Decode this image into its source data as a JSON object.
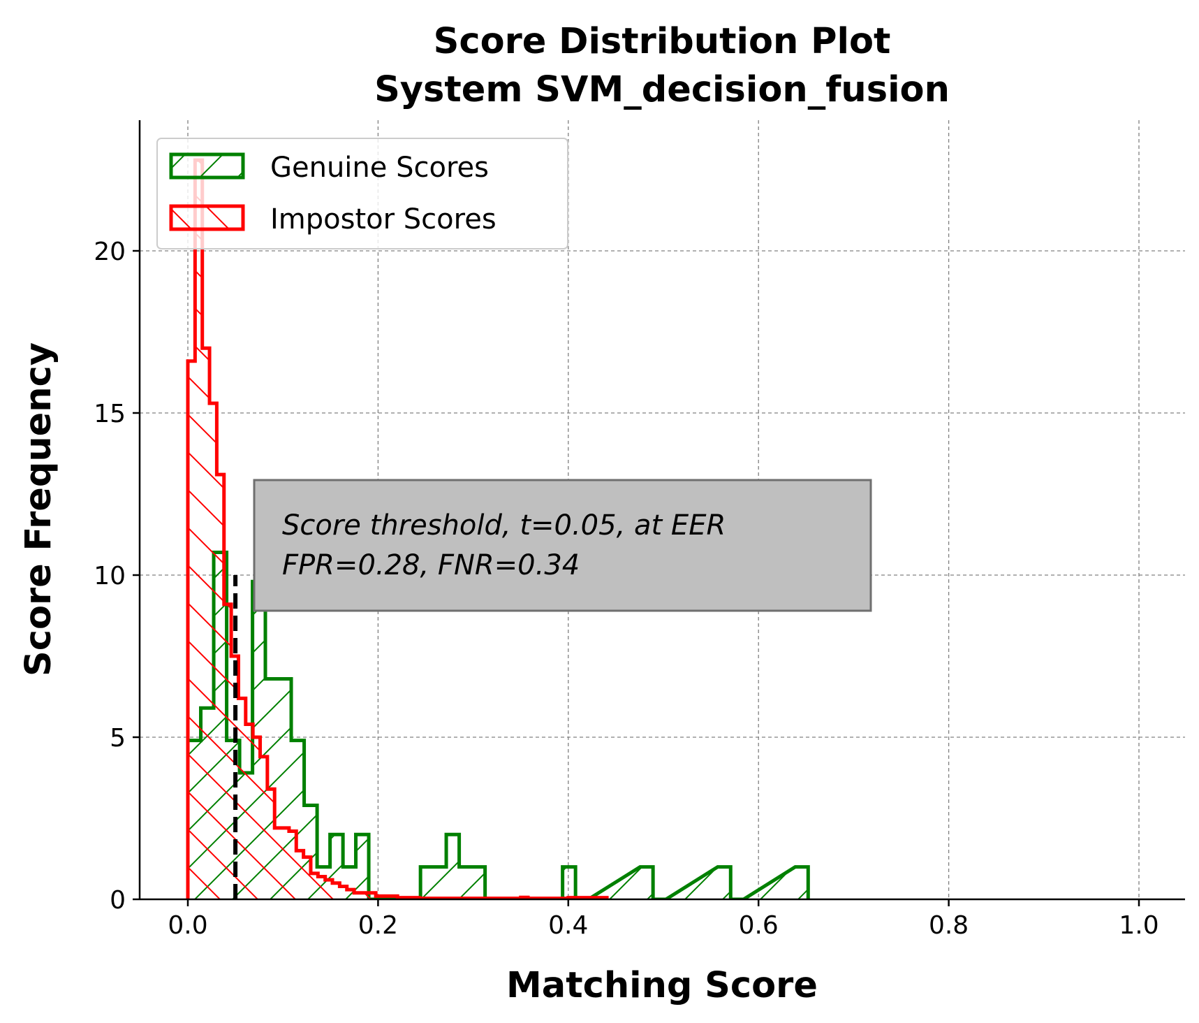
{
  "chart_data": {
    "type": "histogram",
    "title": "Score Distribution Plot",
    "subtitle": "System SVM_decision_fusion",
    "xlabel": "Matching Score",
    "ylabel": "Score Frequency",
    "xlim": [
      -0.05,
      1.05
    ],
    "ylim": [
      0,
      24
    ],
    "xticks": [
      0.0,
      0.2,
      0.4,
      0.6,
      0.8,
      1.0
    ],
    "xtick_labels": [
      "0.0",
      "0.2",
      "0.4",
      "0.6",
      "0.8",
      "1.0"
    ],
    "yticks": [
      0,
      5,
      10,
      15,
      20
    ],
    "ytick_labels": [
      "0",
      "5",
      "10",
      "15",
      "20"
    ],
    "grid": true,
    "legend_position": "upper-left",
    "series": [
      {
        "name": "Genuine Scores",
        "color": "#008000",
        "hatch": "forward-diagonal",
        "bins": [
          [
            0.0,
            0.0136,
            4.9
          ],
          [
            0.0136,
            0.0272,
            5.9
          ],
          [
            0.0272,
            0.0408,
            10.7
          ],
          [
            0.0408,
            0.0544,
            4.9
          ],
          [
            0.0544,
            0.068,
            3.9
          ],
          [
            0.068,
            0.0815,
            9.8
          ],
          [
            0.0815,
            0.0951,
            6.8
          ],
          [
            0.0951,
            0.1087,
            6.8
          ],
          [
            0.1087,
            0.1223,
            4.9
          ],
          [
            0.1223,
            0.1359,
            2.9
          ],
          [
            0.1359,
            0.1495,
            1.0
          ],
          [
            0.1495,
            0.1631,
            2.0
          ],
          [
            0.1631,
            0.1766,
            1.0
          ],
          [
            0.1766,
            0.1902,
            2.0
          ],
          [
            0.1902,
            0.2038,
            0.0
          ],
          [
            0.2038,
            0.2174,
            0.0
          ],
          [
            0.2174,
            0.231,
            0.0
          ],
          [
            0.231,
            0.2446,
            0.0
          ],
          [
            0.2446,
            0.2582,
            1.0
          ],
          [
            0.2582,
            0.2717,
            1.0
          ],
          [
            0.2717,
            0.2853,
            2.0
          ],
          [
            0.2853,
            0.2989,
            1.0
          ],
          [
            0.2989,
            0.3125,
            1.0
          ],
          [
            0.3125,
            0.3261,
            0.0
          ],
          [
            0.3804,
            0.394,
            0.0
          ],
          [
            0.394,
            0.4076,
            1.0
          ],
          [
            0.4076,
            0.4211,
            0.0
          ],
          [
            0.4755,
            0.4891,
            1.0
          ],
          [
            0.4891,
            0.5027,
            0.0
          ],
          [
            0.5571,
            0.5707,
            1.0
          ],
          [
            0.5707,
            0.5843,
            0.0
          ],
          [
            0.6386,
            0.6522,
            1.0
          ]
        ]
      },
      {
        "name": "Impostor Scores",
        "color": "#ff0000",
        "hatch": "back-diagonal",
        "bins": [
          [
            0.0,
            0.0076,
            16.6
          ],
          [
            0.0076,
            0.0152,
            22.8
          ],
          [
            0.0152,
            0.0228,
            17.0
          ],
          [
            0.0228,
            0.0304,
            15.3
          ],
          [
            0.0304,
            0.038,
            13.1
          ],
          [
            0.038,
            0.0456,
            9.1
          ],
          [
            0.0456,
            0.0532,
            7.5
          ],
          [
            0.0532,
            0.0608,
            6.2
          ],
          [
            0.0608,
            0.0684,
            5.4
          ],
          [
            0.0684,
            0.076,
            5.0
          ],
          [
            0.076,
            0.0836,
            4.4
          ],
          [
            0.0836,
            0.0912,
            3.4
          ],
          [
            0.0912,
            0.0988,
            2.2
          ],
          [
            0.0988,
            0.1064,
            2.2
          ],
          [
            0.1064,
            0.114,
            2.1
          ],
          [
            0.114,
            0.1216,
            1.5
          ],
          [
            0.1216,
            0.1292,
            1.3
          ],
          [
            0.1292,
            0.1368,
            0.8
          ],
          [
            0.1368,
            0.1444,
            0.7
          ],
          [
            0.1444,
            0.152,
            0.6
          ],
          [
            0.152,
            0.1596,
            0.5
          ],
          [
            0.1596,
            0.1672,
            0.4
          ],
          [
            0.1672,
            0.1748,
            0.3
          ],
          [
            0.1748,
            0.1824,
            0.2
          ],
          [
            0.1824,
            0.19,
            0.2
          ],
          [
            0.19,
            0.1976,
            0.2
          ],
          [
            0.1976,
            0.2052,
            0.1
          ],
          [
            0.2052,
            0.2128,
            0.1
          ],
          [
            0.2128,
            0.2204,
            0.1
          ],
          [
            0.2204,
            0.228,
            0.05
          ],
          [
            0.228,
            0.2356,
            0.05
          ],
          [
            0.2356,
            0.2432,
            0.05
          ],
          [
            0.2432,
            0.35,
            0.03
          ],
          [
            0.35,
            0.3576,
            0.06
          ],
          [
            0.3576,
            0.4,
            0.03
          ],
          [
            0.4,
            0.4076,
            0.05
          ],
          [
            0.4076,
            0.41,
            0.03
          ],
          [
            0.41,
            0.4176,
            0.05
          ],
          [
            0.4176,
            0.4406,
            0.05
          ]
        ]
      }
    ],
    "threshold": {
      "x": 0.05,
      "ymax": 10.0,
      "style": "dashed",
      "color": "#000000"
    },
    "annotation": {
      "lines": [
        "Score threshold, t=0.05, at EER",
        "FPR=0.28, FNR=0.34"
      ],
      "box_color": "#bfbfbf"
    }
  }
}
